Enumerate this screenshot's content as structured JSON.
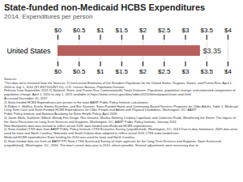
{
  "chart_data": {
    "type": "bar",
    "orientation": "horizontal",
    "title": "State-funded non-Medicaid HCBS Expenditures",
    "subtitle": "2014, Expenditures per person",
    "categories": [
      "United States"
    ],
    "values": [
      3.35
    ],
    "value_labels": [
      "$3.35"
    ],
    "data_labels": true,
    "color": "#b5605a",
    "xlim": [
      0,
      4
    ],
    "xticks": [
      {
        "value": 0,
        "label": "$0"
      },
      {
        "value": 0.5,
        "label": "$0.5"
      },
      {
        "value": 1,
        "label": "$1"
      },
      {
        "value": 1.5,
        "label": "$1.5"
      },
      {
        "value": 2,
        "label": "$2"
      },
      {
        "value": 2.5,
        "label": "$2.5"
      },
      {
        "value": 3,
        "label": "$3"
      },
      {
        "value": 3.5,
        "label": "$3.5"
      },
      {
        "value": 4,
        "label": "$4"
      }
    ],
    "grid": true,
    "sources": [
      "Sources:",
      "*The data were retrieved from the Sources: 1) Intercensal Estimates of the Resident Population for the United States, Regions, States, and Puerto Rico: April 1, 2000 to July 1, 2010 (ST-EST2010NT-01). U.S. Census Bureau, Population Division",
      "Release Date September 2011  2) National, State, and Puerto Rico Commonwealth Totals Datasets: Population, population change, and estimated components of population change: April 1, 2010 to July 1, 2015 available at https://www.census.gov/data/tables/2015/demo/popest/state-total.html",
      "Accessed December 20, 2017.",
      "2) State-funded HCBS Expenditures per person in the state  AARP Public Policy Institute calculations",
      "3) Robert L. Mollica, Kristin Simms-Kastelein, and Eric Kassner, State-Funded Home and Community-Based Services Programs for Older Adults, Table 1, Medicaid Long-Term Care and State-Funded HCBS Expenditures for Older People and Adults with Physical Disabilities. Washington, DC: AARP",
      "Public Policy Institute and National Academy for State Health Policy, April 2009.",
      "4) Jason Walls, Kathleen Gifford, Wendy Fox-Grage, Rex Ditsukie, Martha Roherty, Lindsey Copeland, and Catherine Rudd, Weathering the Storm: The Impact of the Great Recession on Long-Term Services and Supports, Washington, DC: AARP Public Policy Institute, January 2011",
      "New Hampshire data was revised to reflect actual 2009 state funded non-Medicaid HCBS expenditures.",
      "5) State-funded LTSS data from AARP Public Policy Institute LTSS Economic Survey (unpublished), Washington, DC, 2013  Due to data limitations, 2009 data were used for Iowa and North Carolina. Nebraska and South Dakota data adapted to reflect actual 2011 LTSS state-funded non-",
      "Medicaid HCBS expenditures  State funding for 2010 was used for Iowa and North Carolina.",
      "6) State-funded data are from an AARP PPI State LTSS Scorecard Survey  of state agencies for the Long-Term Services and Supports: State Scorecard (unpublished), Washington, DC, 2016. The most current data year is 2014, where possible. Several adjustments were necessary due to"
    ]
  }
}
